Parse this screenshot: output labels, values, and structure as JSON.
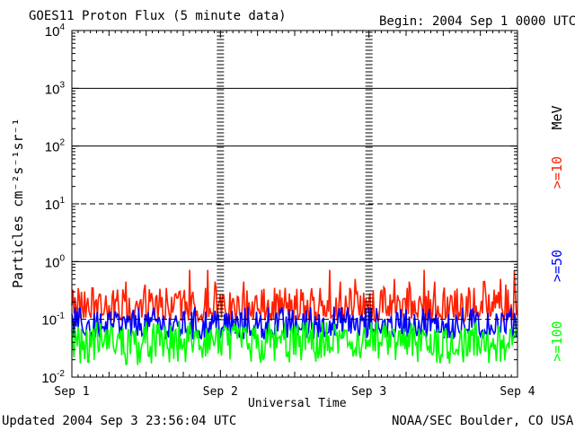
{
  "chart_data": {
    "type": "line",
    "title": "GOES11 Proton Flux (5 minute data)",
    "begin_label": "Begin: 2004 Sep 1 0000 UTC",
    "xlabel": "Universal Time",
    "ylabel": "Particles cm⁻²s⁻¹sr⁻¹",
    "y_scale": "log",
    "ylim": [
      0.01,
      10000
    ],
    "y_ticks": [
      {
        "base": "10",
        "exp": "4",
        "value": 10000
      },
      {
        "base": "10",
        "exp": "3",
        "value": 1000
      },
      {
        "base": "10",
        "exp": "2",
        "value": 100
      },
      {
        "base": "10",
        "exp": "1",
        "value": 10
      },
      {
        "base": "10",
        "exp": "0",
        "value": 1
      },
      {
        "base": "10",
        "exp": "-1",
        "value": 0.1
      },
      {
        "base": "10",
        "exp": "-2",
        "value": 0.01
      }
    ],
    "x_ticks": [
      "Sep 1",
      "Sep 2",
      "Sep 3",
      "Sep 4"
    ],
    "xlim_days": [
      0,
      3
    ],
    "threshold_lines": [
      {
        "value": 1000,
        "style": "solid"
      },
      {
        "value": 100,
        "style": "solid"
      },
      {
        "value": 10,
        "style": "dashed"
      },
      {
        "value": 1,
        "style": "solid"
      },
      {
        "value": 0.1,
        "style": "dashed"
      }
    ],
    "series": [
      {
        "name": ">=10",
        "color": "#ff2000",
        "baseline": 0.13,
        "low": 0.09,
        "high": 0.28,
        "spikes": [
          0.3,
          0.35,
          0.4,
          0.45,
          0.5,
          0.72
        ]
      },
      {
        "name": ">=50",
        "color": "#0000ff",
        "baseline": 0.07,
        "low": 0.045,
        "high": 0.13
      },
      {
        "name": ">=100",
        "color": "#00ff00",
        "baseline": 0.035,
        "low": 0.016,
        "high": 0.07
      }
    ],
    "legend_unit": "MeV"
  },
  "footer": {
    "updated": "Updated 2004 Sep  3 23:56:04 UTC",
    "source": "NOAA/SEC Boulder, CO USA"
  }
}
